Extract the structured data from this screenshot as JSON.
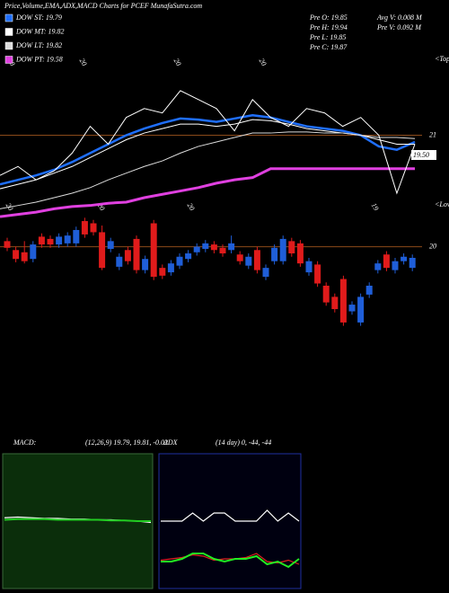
{
  "chart_data": [
    {
      "type": "candlestick",
      "title": "Price,Volume,EMA,ADX,MACD Charts for PCEF MunafaSutra.com",
      "info": [
        "Pre O: 19.85",
        "Avg V: 0.008 M",
        "Pre H: 19.94",
        "Pre V: 0.092 M",
        "Pre L: 19.85",
        "Pre C: 19.87"
      ],
      "top_labels": [
        "20",
        "20",
        "20",
        "20"
      ],
      "bottom_labels": [
        "20",
        "20",
        "20",
        "19"
      ],
      "tops_label": "<Tops",
      "lows_label": "<Lows",
      "last_label": "19.50",
      "open": [
        20.05,
        19.97,
        19.95,
        19.89,
        20.09,
        20.07,
        20.02,
        20.03,
        20.03,
        20.23,
        20.21,
        20.13,
        19.98,
        19.82,
        19.97,
        20.07,
        19.79,
        20.21,
        19.81,
        19.77,
        19.83,
        19.89,
        19.95,
        19.98,
        20.02,
        19.99,
        19.97,
        19.93,
        19.83,
        19.97,
        19.73,
        19.87,
        19.87,
        20.05,
        20.03,
        19.77,
        19.84,
        19.65,
        19.55,
        19.71,
        19.42,
        19.32,
        19.57,
        19.79,
        19.93,
        19.79,
        19.87,
        19.81
      ],
      "high": [
        20.08,
        20.0,
        20.05,
        20.05,
        20.12,
        20.1,
        20.12,
        20.13,
        20.18,
        20.26,
        20.24,
        20.19,
        20.08,
        19.94,
        20.0,
        20.1,
        19.92,
        20.24,
        19.84,
        19.88,
        19.94,
        19.97,
        20.03,
        20.06,
        20.05,
        20.02,
        20.1,
        19.96,
        19.94,
        20.0,
        19.84,
        20.02,
        20.1,
        20.08,
        20.06,
        19.9,
        19.87,
        19.68,
        19.58,
        19.74,
        19.51,
        19.58,
        19.68,
        19.88,
        19.96,
        19.9,
        19.94,
        19.93
      ],
      "low": [
        19.96,
        19.86,
        19.85,
        19.86,
        19.99,
        19.99,
        19.99,
        20.0,
        20.0,
        20.08,
        20.1,
        19.79,
        19.95,
        19.79,
        19.84,
        19.76,
        19.76,
        19.7,
        19.71,
        19.74,
        19.8,
        19.86,
        19.92,
        19.95,
        19.94,
        19.91,
        19.94,
        19.84,
        19.8,
        19.76,
        19.7,
        19.84,
        19.84,
        19.91,
        19.82,
        19.74,
        19.64,
        19.47,
        19.41,
        19.29,
        19.39,
        19.29,
        19.54,
        19.76,
        19.78,
        19.76,
        19.84,
        19.78
      ],
      "close": [
        19.99,
        19.89,
        19.87,
        20.02,
        20.02,
        20.02,
        20.09,
        20.1,
        20.15,
        20.11,
        20.13,
        19.81,
        20.05,
        19.91,
        19.87,
        19.79,
        19.89,
        19.73,
        19.74,
        19.85,
        19.91,
        19.94,
        20.0,
        20.03,
        19.97,
        19.94,
        20.03,
        19.87,
        19.91,
        19.79,
        19.81,
        19.99,
        20.07,
        19.94,
        19.85,
        19.87,
        19.67,
        19.5,
        19.44,
        19.32,
        19.48,
        19.55,
        19.65,
        19.85,
        19.81,
        19.87,
        19.91,
        19.9
      ],
      "up_color": "#1f5ed8",
      "down_color": "#e01b1b",
      "series": [
        {
          "name": "DOW ST: 19.79",
          "color": "#1f6fff",
          "values": [
            20.56,
            20.6,
            20.64,
            20.69,
            20.76,
            20.84,
            20.92,
            21.0,
            21.06,
            21.11,
            21.15,
            21.14,
            21.12,
            21.15,
            21.18,
            21.16,
            21.12,
            21.08,
            21.06,
            21.04,
            21.0,
            20.9,
            20.87,
            20.94
          ]
        },
        {
          "name": "DOW MT: 19.82",
          "color": "#ffffff",
          "values": [
            20.52,
            20.56,
            20.6,
            20.66,
            20.72,
            20.8,
            20.88,
            20.96,
            21.02,
            21.06,
            21.1,
            21.1,
            21.08,
            21.1,
            21.14,
            21.13,
            21.1,
            21.06,
            21.04,
            21.02,
            21.0,
            20.96,
            20.92,
            20.92
          ]
        },
        {
          "name": "DOW LT: 19.82",
          "color": "#dddddd",
          "values": [
            20.34,
            20.37,
            20.4,
            20.44,
            20.48,
            20.53,
            20.6,
            20.66,
            20.72,
            20.77,
            20.84,
            20.9,
            20.94,
            20.98,
            21.02,
            21.02,
            21.03,
            21.03,
            21.02,
            21.02,
            21.0,
            20.98,
            20.98,
            20.97
          ]
        },
        {
          "name": "DOW PT: 19.58",
          "color": "#e040e0",
          "values": [
            20.27,
            20.29,
            20.31,
            20.34,
            20.36,
            20.37,
            20.39,
            20.4,
            20.44,
            20.47,
            20.5,
            20.53,
            20.57,
            20.6,
            20.62,
            20.7,
            20.7,
            20.7,
            20.7,
            20.7,
            20.7,
            20.7,
            20.7,
            20.7
          ]
        },
        {
          "color": "#ffffff",
          "values": [
            20.64,
            20.72,
            20.6,
            20.68,
            20.84,
            21.08,
            20.92,
            21.16,
            21.24,
            21.2,
            21.4,
            21.32,
            21.24,
            21.04,
            21.32,
            21.16,
            21.08,
            21.24,
            21.2,
            21.08,
            21.16,
            21.0,
            20.48,
            20.92
          ]
        }
      ],
      "ylim": [
        19.15,
        21.73
      ],
      "yticks": [
        20,
        21
      ],
      "grid": true,
      "grid_color": "#8b4a1a"
    },
    {
      "type": "line",
      "label": "MACD:",
      "params": "(12,26,9) 19.79, 19.81, -0.02",
      "background": "#0b2e0b",
      "ylim": [
        -1,
        1
      ],
      "series": [
        {
          "color": "#ffffff",
          "values": [
            0.05,
            0.06,
            0.05,
            0.04,
            0.04,
            0.03,
            0.03,
            0.02,
            0.02,
            0.01,
            0.0,
            -0.02
          ]
        },
        {
          "color": "#22cc22",
          "values": [
            0.02,
            0.03,
            0.03,
            0.03,
            0.02,
            0.02,
            0.02,
            0.02,
            0.01,
            0.01,
            0.0,
            0.0
          ]
        }
      ]
    },
    {
      "type": "line",
      "label": "ADX",
      "params": "(14 day) 0, -44, -44",
      "background": "#000010",
      "border": "#2030a0",
      "ylim": [
        0,
        100
      ],
      "series": [
        {
          "color": "#ffffff",
          "values": [
            50,
            50,
            50,
            56,
            50,
            56,
            56,
            50,
            50,
            50,
            58,
            50,
            56,
            50
          ]
        },
        {
          "color": "#e02020",
          "values": [
            21,
            22,
            23,
            25,
            24,
            21,
            22,
            22,
            23,
            26,
            20,
            19,
            21,
            18
          ]
        },
        {
          "color": "#22ee22",
          "values": [
            20,
            20,
            22,
            26,
            26,
            22,
            20,
            22,
            22,
            24,
            18,
            20,
            16,
            22
          ]
        }
      ]
    }
  ]
}
